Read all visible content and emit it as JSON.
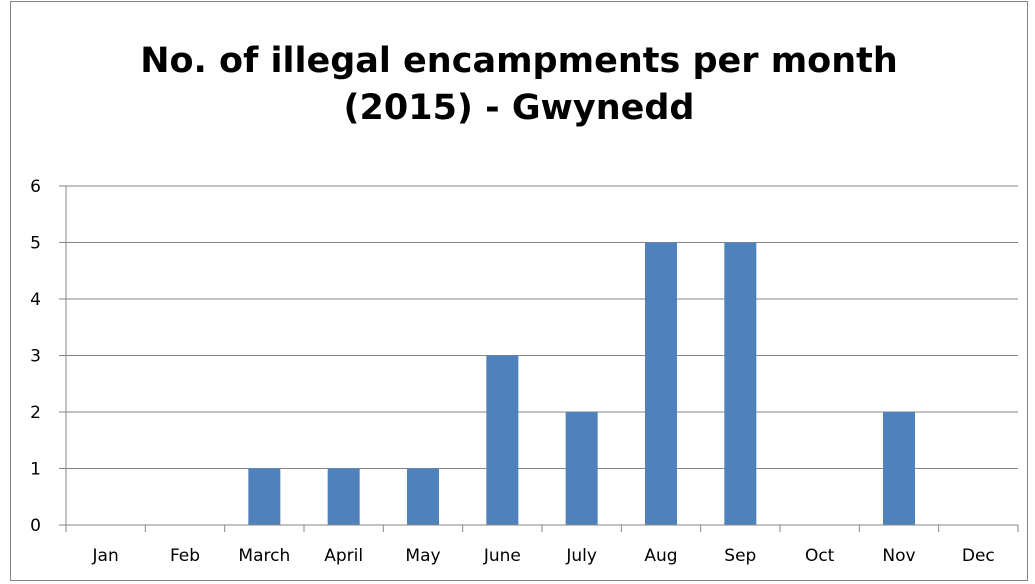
{
  "chart_data": {
    "type": "bar",
    "title": "No. of illegal encampments per month\n(2015) - Gwynedd",
    "xlabel": "",
    "ylabel": "",
    "categories": [
      "Jan",
      "Feb",
      "March",
      "April",
      "May",
      "June",
      "July",
      "Aug",
      "Sep",
      "Oct",
      "Nov",
      "Dec"
    ],
    "values": [
      0,
      0,
      1,
      1,
      1,
      3,
      2,
      5,
      5,
      0,
      2,
      0
    ],
    "ylim": [
      0,
      6
    ],
    "yticks": [
      "0",
      "1",
      "2",
      "3",
      "4",
      "5",
      "6"
    ],
    "grid": true,
    "legend": "none",
    "bar_color": "#4f81bd",
    "grid_color": "#868686",
    "axis_color": "#868686"
  }
}
